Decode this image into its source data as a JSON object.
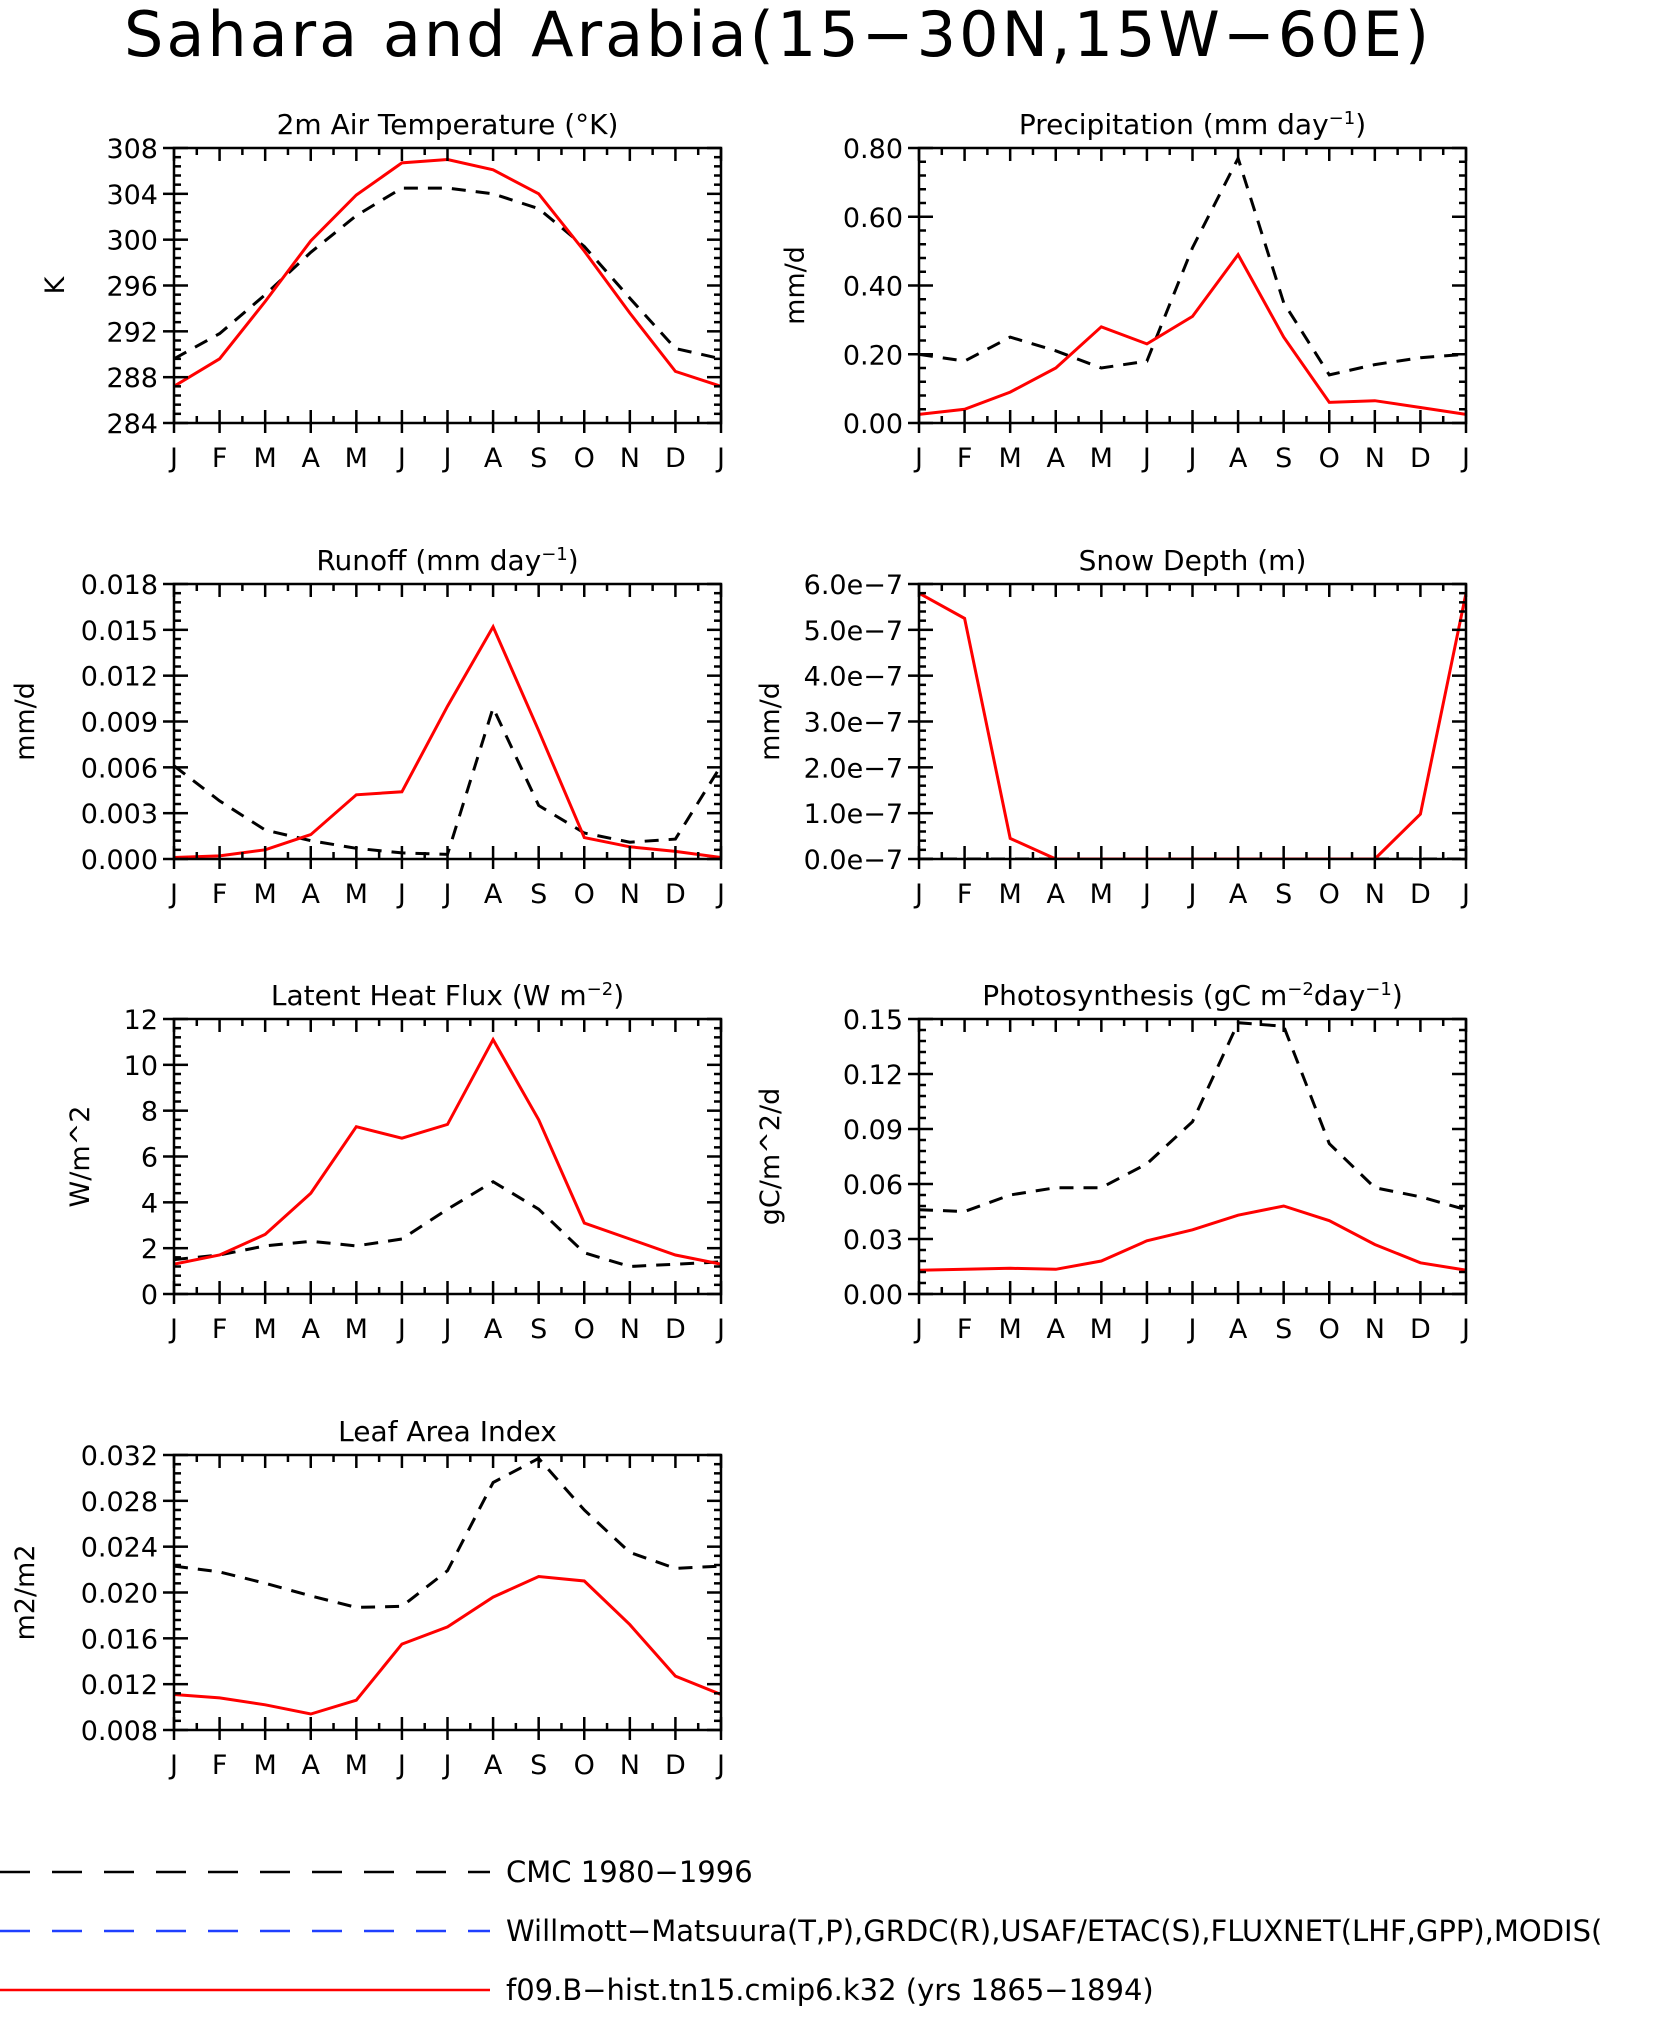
{
  "figure": {
    "title": "Sahara and Arabia(15−30N,15W−60E)"
  },
  "legend": {
    "entries": [
      {
        "label": "CMC 1980−1996",
        "color": "#000000",
        "style": "dashed"
      },
      {
        "label": "Willmott−Matsuura(T,P),GRDC(R),USAF/ETAC(S),FLUXNET(LHF,GPP),MODIS(",
        "color": "#1f3fff",
        "style": "dashed"
      },
      {
        "label": "f09.B−hist.tn15.cmip6.k32 (yrs 1865−1894)",
        "color": "#ff0000",
        "style": "solid"
      }
    ]
  },
  "chart_data": [
    {
      "type": "line",
      "title": "2m Air Temperature (°K)",
      "ylabel": "K",
      "x": [
        "J",
        "F",
        "M",
        "A",
        "M",
        "J",
        "J",
        "A",
        "S",
        "O",
        "N",
        "D",
        "J"
      ],
      "ylim": [
        284,
        308
      ],
      "yticks": [
        "284",
        "288",
        "292",
        "296",
        "300",
        "304",
        "308"
      ],
      "series": [
        {
          "name": "CMC 1980−1996",
          "values": [
            289.6,
            291.8,
            295.2,
            298.9,
            302.1,
            304.5,
            304.5,
            304.0,
            302.7,
            299.4,
            294.9,
            290.5,
            289.6
          ]
        },
        {
          "name": "f09.B−hist.tn15.cmip6.k32 (yrs 1865−1894)",
          "values": [
            287.2,
            289.6,
            294.6,
            299.9,
            303.9,
            306.7,
            307.0,
            306.1,
            304.0,
            299.0,
            293.6,
            288.5,
            287.2
          ]
        }
      ]
    },
    {
      "type": "line",
      "title": "Precipitation (mm day",
      "title_sup": "−1",
      "title_end": ")",
      "ylabel": "mm/d",
      "x": [
        "J",
        "F",
        "M",
        "A",
        "M",
        "J",
        "J",
        "A",
        "S",
        "O",
        "N",
        "D",
        "J"
      ],
      "ylim": [
        0,
        0.8
      ],
      "yticks": [
        "0.00",
        "0.20",
        "0.40",
        "0.60",
        "0.80"
      ],
      "series": [
        {
          "name": "CMC 1980−1996",
          "values": [
            0.2,
            0.18,
            0.25,
            0.21,
            0.16,
            0.18,
            0.51,
            0.77,
            0.35,
            0.14,
            0.17,
            0.19,
            0.2
          ]
        },
        {
          "name": "f09.B−hist.tn15.cmip6.k32 (yrs 1865−1894)",
          "values": [
            0.025,
            0.04,
            0.09,
            0.16,
            0.28,
            0.23,
            0.31,
            0.49,
            0.25,
            0.06,
            0.065,
            0.045,
            0.025
          ]
        }
      ]
    },
    {
      "type": "line",
      "title": "Runoff (mm day",
      "title_sup": "−1",
      "title_end": ")",
      "ylabel": "mm/d",
      "x": [
        "J",
        "F",
        "M",
        "A",
        "M",
        "J",
        "J",
        "A",
        "S",
        "O",
        "N",
        "D",
        "J"
      ],
      "ylim": [
        0,
        0.018
      ],
      "yticks": [
        "0.000",
        "0.003",
        "0.006",
        "0.009",
        "0.012",
        "0.015",
        "0.018"
      ],
      "series": [
        {
          "name": "CMC 1980−1996",
          "values": [
            0.0061,
            0.0038,
            0.0019,
            0.0012,
            0.0007,
            0.0004,
            0.0003,
            0.0099,
            0.0035,
            0.0017,
            0.0011,
            0.0013,
            0.0061
          ]
        },
        {
          "name": "f09.B−hist.tn15.cmip6.k32 (yrs 1865−1894)",
          "values": [
            0.0001,
            0.0002,
            0.0006,
            0.0016,
            0.0042,
            0.0044,
            0.01,
            0.0152,
            0.0084,
            0.0014,
            0.0008,
            0.0005,
            0.0001
          ]
        }
      ]
    },
    {
      "type": "line",
      "title": "Snow Depth (m)",
      "ylabel": "mm/d",
      "x": [
        "J",
        "F",
        "M",
        "A",
        "M",
        "J",
        "J",
        "A",
        "S",
        "O",
        "N",
        "D",
        "J"
      ],
      "ylim": [
        0,
        6e-07
      ],
      "yticks": [
        "0.0e−7",
        "1.0e−7",
        "2.0e−7",
        "3.0e−7",
        "4.0e−7",
        "5.0e−7",
        "6.0e−7"
      ],
      "series": [
        {
          "name": "CMC 1980−1996",
          "values": [
            0,
            0,
            0,
            0,
            0,
            0,
            0,
            0,
            0,
            0,
            0,
            0,
            0
          ]
        },
        {
          "name": "f09.B−hist.tn15.cmip6.k32 (yrs 1865−1894)",
          "values": [
            5.8e-07,
            5.25e-07,
            4.5e-08,
            0,
            0,
            0,
            0,
            0,
            0,
            0,
            0,
            9.8e-08,
            5.8e-07
          ]
        }
      ]
    },
    {
      "type": "line",
      "title": "Latent Heat Flux (W m",
      "title_sup": "−2",
      "title_end": ")",
      "ylabel": "W/m^2",
      "x": [
        "J",
        "F",
        "M",
        "A",
        "M",
        "J",
        "J",
        "A",
        "S",
        "O",
        "N",
        "D",
        "J"
      ],
      "ylim": [
        0,
        12
      ],
      "yticks": [
        "0",
        "2",
        "4",
        "6",
        "8",
        "10",
        "12"
      ],
      "series": [
        {
          "name": "CMC 1980−1996",
          "values": [
            1.5,
            1.7,
            2.1,
            2.3,
            2.1,
            2.4,
            3.7,
            4.9,
            3.7,
            1.8,
            1.2,
            1.3,
            1.4
          ]
        },
        {
          "name": "f09.B−hist.tn15.cmip6.k32 (yrs 1865−1894)",
          "values": [
            1.3,
            1.7,
            2.6,
            4.4,
            7.3,
            6.8,
            7.4,
            11.1,
            7.6,
            3.1,
            2.4,
            1.7,
            1.3
          ]
        }
      ]
    },
    {
      "type": "line",
      "title": "Photosynthesis (gC m",
      "title_sup": "−2",
      "title_end": "day",
      "title_sup2": "−1",
      "title_end2": ")",
      "ylabel": "gC/m^2/d",
      "x": [
        "J",
        "F",
        "M",
        "A",
        "M",
        "J",
        "J",
        "A",
        "S",
        "O",
        "N",
        "D",
        "J"
      ],
      "ylim": [
        0,
        0.15
      ],
      "yticks": [
        "0.00",
        "0.03",
        "0.06",
        "0.09",
        "0.12",
        "0.15"
      ],
      "series": [
        {
          "name": "CMC 1980−1996",
          "values": [
            0.046,
            0.045,
            0.054,
            0.058,
            0.058,
            0.071,
            0.094,
            0.148,
            0.146,
            0.082,
            0.058,
            0.053,
            0.046
          ]
        },
        {
          "name": "f09.B−hist.tn15.cmip6.k32 (yrs 1865−1894)",
          "values": [
            0.013,
            0.0135,
            0.014,
            0.0135,
            0.018,
            0.029,
            0.035,
            0.043,
            0.048,
            0.04,
            0.027,
            0.017,
            0.013
          ]
        }
      ]
    },
    {
      "type": "line",
      "title": "Leaf Area Index",
      "ylabel": "m2/m2",
      "x": [
        "J",
        "F",
        "M",
        "A",
        "M",
        "J",
        "J",
        "A",
        "S",
        "O",
        "N",
        "D",
        "J"
      ],
      "ylim": [
        0.008,
        0.032
      ],
      "yticks": [
        "0.008",
        "0.012",
        "0.016",
        "0.020",
        "0.024",
        "0.028",
        "0.032"
      ],
      "series": [
        {
          "name": "CMC 1980−1996",
          "values": [
            0.0223,
            0.0218,
            0.0208,
            0.0197,
            0.0187,
            0.0188,
            0.0219,
            0.0296,
            0.0317,
            0.0272,
            0.0235,
            0.0221,
            0.0223
          ]
        },
        {
          "name": "f09.B−hist.tn15.cmip6.k32 (yrs 1865−1894)",
          "values": [
            0.0111,
            0.0108,
            0.0102,
            0.0094,
            0.0106,
            0.0155,
            0.017,
            0.0196,
            0.0214,
            0.021,
            0.0172,
            0.0127,
            0.0111
          ]
        }
      ]
    }
  ]
}
